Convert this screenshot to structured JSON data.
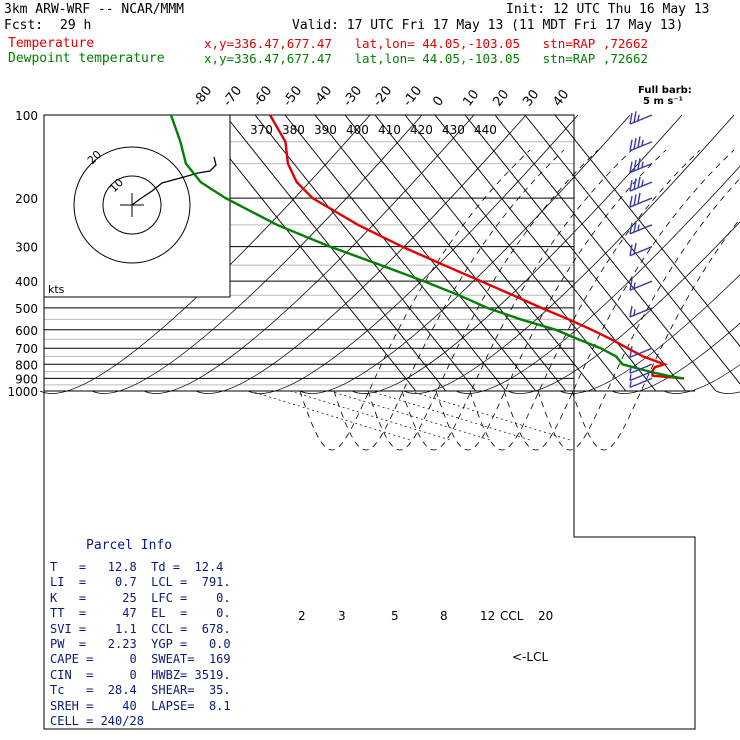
{
  "header": {
    "model": "3km ARW-WRF -- NCAR/MMM",
    "init": "Init: 12 UTC Thu 16 May 13",
    "fcst_label": "Fcst:",
    "fcst_value": "29 h",
    "valid": "Valid: 17 UTC Fri 17 May 13 (11 MDT Fri 17 May 13)",
    "temp_label": "Temperature",
    "temp_loc": "x,y=336.47,677.47   lat,lon= 44.05,-103.05   stn=RAP ,72662",
    "dew_label": "Dewpoint temperature",
    "dew_loc": "x,y=336.47,677.47   lat,lon= 44.05,-103.05   stn=RAP ,72662",
    "barb_title": "Full barb:",
    "barb_sub": "5 m s⁻¹"
  },
  "colors": {
    "temperature": "#e00000",
    "dewpoint": "#008000",
    "parcel_text": "#0b1a7a",
    "barbs": "#3a3aa0",
    "lines": "#000000",
    "guides": "#b8b8b8"
  },
  "chart_data": {
    "type": "line",
    "chart_kind": "skew-T log-p sounding",
    "pressure_levels": [
      100,
      200,
      300,
      400,
      500,
      600,
      700,
      800,
      900,
      1000
    ],
    "pressure_range": [
      100,
      1000
    ],
    "isotherm_labels": [
      -80,
      -70,
      -60,
      -50,
      -40,
      -30,
      -20,
      -10,
      0,
      10,
      20,
      30,
      40
    ],
    "dry_adiabat_labels": [
      370,
      380,
      390,
      400,
      410,
      420,
      430,
      440
    ],
    "mixing_ratio_labels": [
      "2",
      "3",
      "5",
      "8",
      "12",
      "20"
    ],
    "ccl_label": "CCL",
    "lcl_label": "<-LCL",
    "series": [
      {
        "name": "Temperature",
        "points": [
          {
            "p": 100,
            "t": -55
          },
          {
            "p": 125,
            "t": -57
          },
          {
            "p": 150,
            "t": -62
          },
          {
            "p": 175,
            "t": -64
          },
          {
            "p": 200,
            "t": -63
          },
          {
            "p": 250,
            "t": -55
          },
          {
            "p": 300,
            "t": -46
          },
          {
            "p": 350,
            "t": -37
          },
          {
            "p": 400,
            "t": -29
          },
          {
            "p": 450,
            "t": -22
          },
          {
            "p": 500,
            "t": -16
          },
          {
            "p": 550,
            "t": -10
          },
          {
            "p": 600,
            "t": -5
          },
          {
            "p": 650,
            "t": -1
          },
          {
            "p": 700,
            "t": 2
          },
          {
            "p": 750,
            "t": 5
          },
          {
            "p": 790,
            "t": 9
          },
          {
            "p": 800,
            "t": 10
          },
          {
            "p": 820,
            "t": 6
          },
          {
            "p": 850,
            "t": 4
          },
          {
            "p": 880,
            "t": 3
          },
          {
            "p": 900,
            "t": 12.8
          }
        ]
      },
      {
        "name": "Dewpoint temperature",
        "points": [
          {
            "p": 100,
            "t": -88
          },
          {
            "p": 125,
            "t": -92
          },
          {
            "p": 150,
            "t": -96
          },
          {
            "p": 175,
            "t": -96
          },
          {
            "p": 200,
            "t": -92
          },
          {
            "p": 250,
            "t": -82
          },
          {
            "p": 300,
            "t": -70
          },
          {
            "p": 350,
            "t": -58
          },
          {
            "p": 400,
            "t": -48
          },
          {
            "p": 450,
            "t": -40
          },
          {
            "p": 500,
            "t": -34
          },
          {
            "p": 550,
            "t": -26
          },
          {
            "p": 600,
            "t": -17
          },
          {
            "p": 650,
            "t": -12
          },
          {
            "p": 700,
            "t": -7
          },
          {
            "p": 750,
            "t": -4
          },
          {
            "p": 800,
            "t": -4
          },
          {
            "p": 850,
            "t": 3
          },
          {
            "p": 880,
            "t": 8
          },
          {
            "p": 900,
            "t": 12.4
          }
        ]
      }
    ],
    "hodograph": {
      "speed_label": "kts",
      "ring_labels": [
        "10",
        "20"
      ]
    },
    "wind_barbs": [
      {
        "p": 100,
        "dir": 270,
        "spd": 25
      },
      {
        "p": 125,
        "dir": 270,
        "spd": 35
      },
      {
        "p": 150,
        "dir": 265,
        "spd": 35
      },
      {
        "p": 175,
        "dir": 265,
        "spd": 35
      },
      {
        "p": 200,
        "dir": 260,
        "spd": 30
      },
      {
        "p": 250,
        "dir": 255,
        "spd": 25
      },
      {
        "p": 300,
        "dir": 250,
        "spd": 20
      },
      {
        "p": 400,
        "dir": 250,
        "spd": 15
      },
      {
        "p": 500,
        "dir": 240,
        "spd": 15
      },
      {
        "p": 700,
        "dir": 230,
        "spd": 10
      },
      {
        "p": 800,
        "dir": 210,
        "spd": 5
      },
      {
        "p": 850,
        "dir": 180,
        "spd": 5
      },
      {
        "p": 900,
        "dir": 160,
        "spd": 5
      }
    ]
  },
  "parcel_info": {
    "title": "Parcel Info",
    "rows": [
      "T   =   12.8  Td =  12.4",
      "LI  =    0.7  LCL =  791.",
      "K   =     25  LFC =    0.",
      "TT  =     47  EL  =    0.",
      "SVI =    1.1  CCL =  678.",
      "PW  =   2.23  YGP =   0.0",
      "CAPE =     0  SWEAT=  169",
      "CIN  =     0  HWBZ= 3519.",
      "Tc   =  28.4  SHEAR=  35.",
      "SREH =    40  LAPSE=  8.1",
      "CELL = 240/28"
    ]
  }
}
